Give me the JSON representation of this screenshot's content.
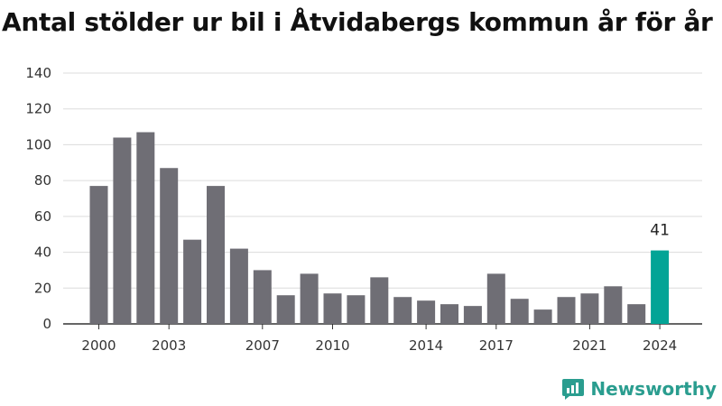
{
  "title": "Antal stölder ur bil i Åtvidabergs kommun år för år",
  "brand": {
    "name": "Newsworthy",
    "icon": "newsworthy-logo-icon"
  },
  "colors": {
    "bar": "#6f6e75",
    "highlight": "#03a496",
    "grid": "#dcdcdc",
    "axis": "#333333"
  },
  "chart_data": {
    "type": "bar",
    "title": "Antal stölder ur bil i Åtvidabergs kommun år för år",
    "xlabel": "",
    "ylabel": "",
    "categories": [
      2000,
      2001,
      2002,
      2003,
      2004,
      2005,
      2006,
      2007,
      2008,
      2009,
      2010,
      2011,
      2012,
      2013,
      2014,
      2015,
      2016,
      2017,
      2018,
      2019,
      2020,
      2021,
      2022,
      2023,
      2024
    ],
    "values": [
      77,
      104,
      107,
      87,
      47,
      77,
      42,
      30,
      16,
      28,
      17,
      16,
      26,
      15,
      13,
      11,
      10,
      28,
      14,
      8,
      15,
      17,
      21,
      11,
      41
    ],
    "x_tick_labels": [
      "2000",
      "2003",
      "2007",
      "2010",
      "2014",
      "2017",
      "2021",
      "2024"
    ],
    "y_ticks": [
      0,
      20,
      40,
      60,
      80,
      100,
      120,
      140
    ],
    "ylim": [
      0,
      140
    ],
    "grid": true,
    "legend": "none",
    "highlight": {
      "category": 2024,
      "value_label": "41"
    }
  }
}
